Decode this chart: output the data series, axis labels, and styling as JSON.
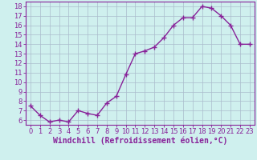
{
  "x": [
    0,
    1,
    2,
    3,
    4,
    5,
    6,
    7,
    8,
    9,
    10,
    11,
    12,
    13,
    14,
    15,
    16,
    17,
    18,
    19,
    20,
    21,
    22,
    23
  ],
  "y": [
    7.5,
    6.5,
    5.8,
    6.0,
    5.8,
    7.0,
    6.7,
    6.5,
    7.8,
    8.5,
    10.8,
    13.0,
    13.3,
    13.7,
    14.7,
    16.0,
    16.8,
    16.8,
    18.0,
    17.8,
    17.0,
    16.0,
    14.0,
    14.0
  ],
  "xlabel": "Windchill (Refroidissement éolien,°C)",
  "xlim": [
    -0.5,
    23.5
  ],
  "ylim": [
    5.5,
    18.5
  ],
  "yticks": [
    6,
    7,
    8,
    9,
    10,
    11,
    12,
    13,
    14,
    15,
    16,
    17,
    18
  ],
  "xticks": [
    0,
    1,
    2,
    3,
    4,
    5,
    6,
    7,
    8,
    9,
    10,
    11,
    12,
    13,
    14,
    15,
    16,
    17,
    18,
    19,
    20,
    21,
    22,
    23
  ],
  "line_color": "#882299",
  "marker": "+",
  "marker_size": 4,
  "bg_color": "#cff0ee",
  "grid_color": "#aabbcc",
  "xlabel_color": "#882299",
  "xlabel_fontsize": 7,
  "tick_fontsize": 6,
  "line_width": 1.0
}
